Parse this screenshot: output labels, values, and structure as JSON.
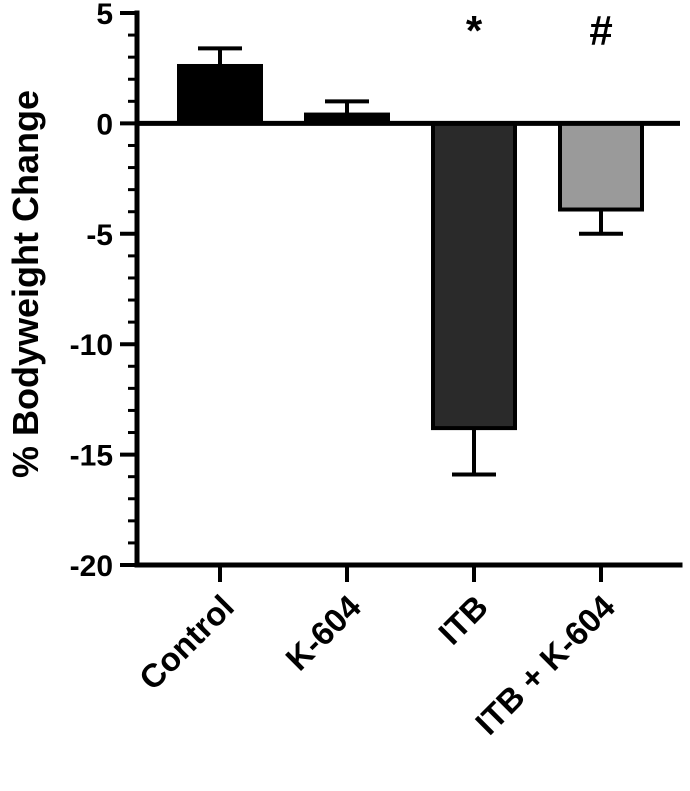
{
  "chart_data": {
    "type": "bar",
    "title": "",
    "xlabel": "",
    "ylabel": "% Bodyweight Change",
    "ylim": [
      -20,
      5
    ],
    "yticks": [
      5,
      0,
      -5,
      -10,
      -15,
      -20
    ],
    "ytick_labels": [
      "5",
      "0",
      "-5",
      "-10",
      "-15",
      "-20"
    ],
    "minor_ticks_per_interval": 5,
    "grid": false,
    "legend": "none",
    "categories": [
      "Control",
      "K-604",
      "ITB",
      "ITB + K-604"
    ],
    "values": [
      2.6,
      0.4,
      -13.8,
      -3.9
    ],
    "errors": [
      0.8,
      0.6,
      2.1,
      1.1
    ],
    "annotations": [
      "",
      "",
      "*",
      "#"
    ],
    "colors": [
      "#000000",
      "#000000",
      "#2a2a2a",
      "#9a9a9a"
    ]
  }
}
